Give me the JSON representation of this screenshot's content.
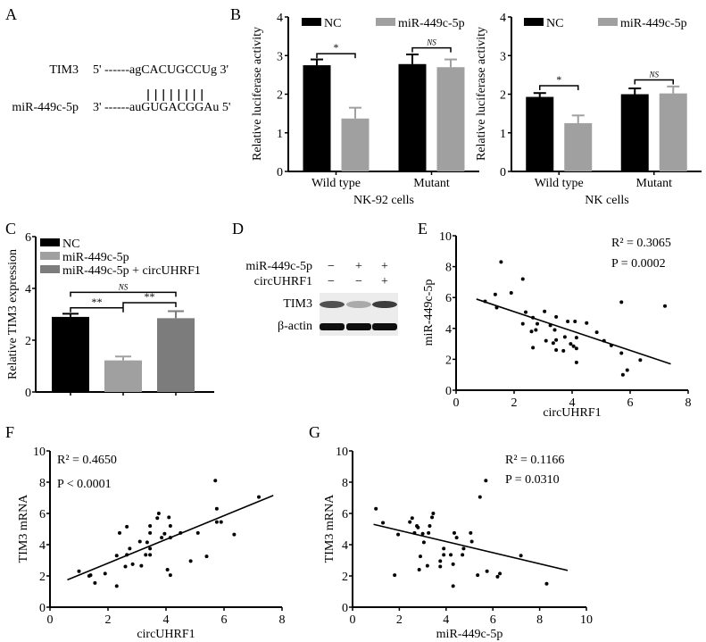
{
  "colors": {
    "nc": "#000000",
    "mir": "#a0a0a0",
    "mir_circ": "#7c7c7c",
    "axis": "#000000"
  },
  "panelA": {
    "label": "A",
    "row1_name": "TIM3",
    "row1_seq": "5' ------agCACUGCCUg 3'",
    "row2_name": "miR-449c-5p",
    "row2_seq": "3' ------auGUGACGGAu 5'",
    "pairs": 8
  },
  "panelD": {
    "label": "D",
    "row_labels": [
      "miR-449c-5p",
      "circUHRF1",
      "TIM3",
      "β-actin"
    ],
    "mir_signs": [
      "−",
      "+",
      "+"
    ],
    "circ_signs": [
      "−",
      "−",
      "+"
    ],
    "tim3_band_intensity": [
      0.75,
      0.3,
      0.85
    ],
    "actin_band_intensity": [
      1.0,
      1.0,
      1.0
    ]
  },
  "chart_data": [
    {
      "id": "B1",
      "panel_label": "B",
      "type": "bar",
      "title": "",
      "xlabel": "NK-92 cells",
      "ylabel": "Relative luciferase activity",
      "ylim": [
        0,
        4
      ],
      "yticks": [
        "0",
        "1",
        "2",
        "3",
        "4"
      ],
      "categories": [
        "Wild type",
        "Mutant"
      ],
      "legend": "top",
      "series": [
        {
          "name": "NC",
          "color": "#000000",
          "values": [
            2.75,
            2.78
          ],
          "errors": [
            0.15,
            0.25
          ]
        },
        {
          "name": "miR-449c-5p",
          "color": "#a0a0a0",
          "values": [
            1.37,
            2.7
          ],
          "errors": [
            0.28,
            0.2
          ]
        }
      ],
      "significance": [
        {
          "category": 0,
          "label": "*",
          "y": 3.05
        },
        {
          "category": 1,
          "label": "NS",
          "y": 3.2
        }
      ]
    },
    {
      "id": "B2",
      "type": "bar",
      "title": "",
      "xlabel": "NK cells",
      "ylabel": "Relative luciferase activity",
      "ylim": [
        0,
        4
      ],
      "yticks": [
        "0",
        "1",
        "2",
        "3",
        "4"
      ],
      "categories": [
        "Wild type",
        "Mutant"
      ],
      "legend": "top",
      "series": [
        {
          "name": "NC",
          "color": "#000000",
          "values": [
            1.93,
            2.0
          ],
          "errors": [
            0.1,
            0.15
          ]
        },
        {
          "name": "miR-449c-5p",
          "color": "#a0a0a0",
          "values": [
            1.25,
            2.02
          ],
          "errors": [
            0.2,
            0.18
          ]
        }
      ],
      "significance": [
        {
          "category": 0,
          "label": "*",
          "y": 2.22
        },
        {
          "category": 1,
          "label": "NS",
          "y": 2.37
        }
      ]
    },
    {
      "id": "C",
      "panel_label": "C",
      "type": "bar",
      "title": "",
      "xlabel": "",
      "ylabel": "Relative TIM3 expression",
      "ylim": [
        0,
        6
      ],
      "yticks": [
        "0",
        "2",
        "4",
        "6"
      ],
      "categories": [
        "NC",
        "miR-449c-5p",
        "miR-449c-5p + circUHRF1"
      ],
      "legend": "top-left",
      "values": [
        2.9,
        1.22,
        2.85
      ],
      "errors": [
        0.12,
        0.15,
        0.27
      ],
      "colors": [
        "#000000",
        "#a0a0a0",
        "#7c7c7c"
      ],
      "significance": [
        {
          "from": 0,
          "to": 1,
          "label": "**",
          "y": 3.25
        },
        {
          "from": 1,
          "to": 2,
          "label": "**",
          "y": 3.45
        },
        {
          "from": 0,
          "to": 2,
          "label": "NS",
          "y": 3.85
        }
      ]
    },
    {
      "id": "E",
      "panel_label": "E",
      "type": "scatter",
      "xlabel": "circUHRF1",
      "ylabel": "miR-449c-5p",
      "xlim": [
        0,
        8
      ],
      "ylim": [
        0,
        10
      ],
      "xticks": [
        "0",
        "2",
        "4",
        "6",
        "8"
      ],
      "yticks": [
        "0",
        "2",
        "4",
        "6",
        "8",
        "10"
      ],
      "annotations": [
        "R² = 0.3065",
        "P = 0.0002"
      ],
      "fit_line": {
        "x": [
          0.7,
          7.4
        ],
        "y": [
          5.9,
          1.7
        ]
      },
      "points": [
        [
          1.0,
          5.75
        ],
        [
          1.35,
          6.2
        ],
        [
          1.4,
          5.35
        ],
        [
          1.55,
          8.3
        ],
        [
          1.9,
          6.3
        ],
        [
          2.3,
          7.2
        ],
        [
          2.3,
          4.3
        ],
        [
          2.4,
          5.05
        ],
        [
          2.6,
          3.8
        ],
        [
          2.65,
          4.7
        ],
        [
          2.65,
          2.75
        ],
        [
          2.75,
          3.9
        ],
        [
          2.8,
          4.3
        ],
        [
          3.05,
          5.1
        ],
        [
          3.1,
          3.2
        ],
        [
          3.25,
          4.2
        ],
        [
          3.35,
          3.05
        ],
        [
          3.4,
          3.9
        ],
        [
          3.45,
          4.75
        ],
        [
          3.45,
          3.25
        ],
        [
          3.45,
          2.6
        ],
        [
          3.7,
          2.55
        ],
        [
          3.75,
          3.45
        ],
        [
          3.85,
          4.45
        ],
        [
          3.95,
          3.0
        ],
        [
          4.05,
          2.85
        ],
        [
          4.1,
          4.45
        ],
        [
          4.15,
          3.4
        ],
        [
          4.15,
          2.7
        ],
        [
          4.15,
          1.8
        ],
        [
          4.5,
          4.35
        ],
        [
          4.85,
          3.75
        ],
        [
          5.1,
          3.2
        ],
        [
          5.35,
          2.9
        ],
        [
          5.7,
          5.7
        ],
        [
          5.7,
          2.4
        ],
        [
          5.75,
          1.0
        ],
        [
          5.9,
          1.3
        ],
        [
          6.35,
          1.95
        ],
        [
          7.2,
          5.45
        ]
      ]
    },
    {
      "id": "F",
      "panel_label": "F",
      "type": "scatter",
      "xlabel": "circUHRF1",
      "ylabel": "TIM3 mRNA",
      "xlim": [
        0,
        8
      ],
      "ylim": [
        0,
        10
      ],
      "xticks": [
        "0",
        "2",
        "4",
        "6",
        "8"
      ],
      "yticks": [
        "0",
        "2",
        "4",
        "6",
        "8",
        "10"
      ],
      "annotations": [
        "R² = 0.4650",
        "P < 0.0001"
      ],
      "fit_line": {
        "x": [
          0.6,
          7.7
        ],
        "y": [
          1.75,
          7.15
        ]
      },
      "points": [
        [
          1.0,
          2.3
        ],
        [
          1.35,
          2.0
        ],
        [
          1.4,
          2.05
        ],
        [
          1.55,
          1.55
        ],
        [
          1.9,
          2.15
        ],
        [
          2.3,
          1.35
        ],
        [
          2.3,
          3.3
        ],
        [
          2.4,
          4.75
        ],
        [
          2.6,
          2.6
        ],
        [
          2.65,
          5.15
        ],
        [
          2.65,
          3.35
        ],
        [
          2.75,
          3.75
        ],
        [
          2.85,
          2.75
        ],
        [
          3.1,
          4.2
        ],
        [
          3.15,
          2.65
        ],
        [
          3.3,
          3.35
        ],
        [
          3.35,
          4.15
        ],
        [
          3.45,
          3.35
        ],
        [
          3.45,
          3.75
        ],
        [
          3.45,
          4.75
        ],
        [
          3.45,
          5.2
        ],
        [
          3.7,
          5.7
        ],
        [
          3.75,
          6.0
        ],
        [
          3.85,
          4.45
        ],
        [
          3.95,
          4.7
        ],
        [
          4.05,
          2.4
        ],
        [
          4.1,
          5.75
        ],
        [
          4.15,
          5.2
        ],
        [
          4.15,
          4.45
        ],
        [
          4.15,
          2.05
        ],
        [
          4.5,
          4.75
        ],
        [
          4.85,
          2.95
        ],
        [
          5.1,
          4.75
        ],
        [
          5.4,
          3.25
        ],
        [
          5.7,
          8.1
        ],
        [
          5.75,
          6.3
        ],
        [
          5.75,
          5.45
        ],
        [
          5.9,
          5.45
        ],
        [
          6.35,
          4.65
        ],
        [
          7.2,
          7.05
        ]
      ]
    },
    {
      "id": "G",
      "panel_label": "G",
      "type": "scatter",
      "xlabel": "miR-449c-5p",
      "ylabel": "TIM3 mRNA",
      "xlim": [
        0,
        10
      ],
      "ylim": [
        0,
        10
      ],
      "xticks": [
        "0",
        "2",
        "4",
        "6",
        "8",
        "10"
      ],
      "yticks": [
        "0",
        "2",
        "4",
        "6",
        "8",
        "10"
      ],
      "annotations": [
        "R² = 0.1166",
        "P = 0.0310"
      ],
      "fit_line": {
        "x": [
          0.9,
          9.2
        ],
        "y": [
          5.3,
          2.35
        ]
      },
      "points": [
        [
          1.0,
          6.3
        ],
        [
          1.3,
          5.4
        ],
        [
          1.8,
          2.05
        ],
        [
          1.95,
          4.65
        ],
        [
          2.45,
          5.45
        ],
        [
          2.55,
          5.7
        ],
        [
          2.65,
          4.75
        ],
        [
          2.75,
          5.2
        ],
        [
          2.8,
          5.1
        ],
        [
          2.85,
          2.4
        ],
        [
          2.9,
          3.25
        ],
        [
          3.0,
          4.7
        ],
        [
          3.05,
          4.15
        ],
        [
          3.2,
          2.65
        ],
        [
          3.25,
          4.75
        ],
        [
          3.3,
          5.2
        ],
        [
          3.4,
          5.75
        ],
        [
          3.45,
          6.0
        ],
        [
          3.75,
          2.95
        ],
        [
          3.75,
          2.6
        ],
        [
          3.9,
          3.75
        ],
        [
          3.9,
          3.35
        ],
        [
          4.2,
          3.35
        ],
        [
          4.3,
          2.75
        ],
        [
          4.3,
          1.35
        ],
        [
          4.35,
          4.75
        ],
        [
          4.45,
          4.45
        ],
        [
          4.7,
          3.35
        ],
        [
          4.75,
          3.75
        ],
        [
          5.05,
          4.75
        ],
        [
          5.1,
          4.2
        ],
        [
          5.35,
          2.05
        ],
        [
          5.45,
          7.05
        ],
        [
          5.7,
          8.1
        ],
        [
          5.75,
          2.3
        ],
        [
          6.2,
          1.95
        ],
        [
          6.3,
          2.15
        ],
        [
          7.2,
          3.3
        ],
        [
          8.3,
          1.5
        ]
      ]
    }
  ]
}
